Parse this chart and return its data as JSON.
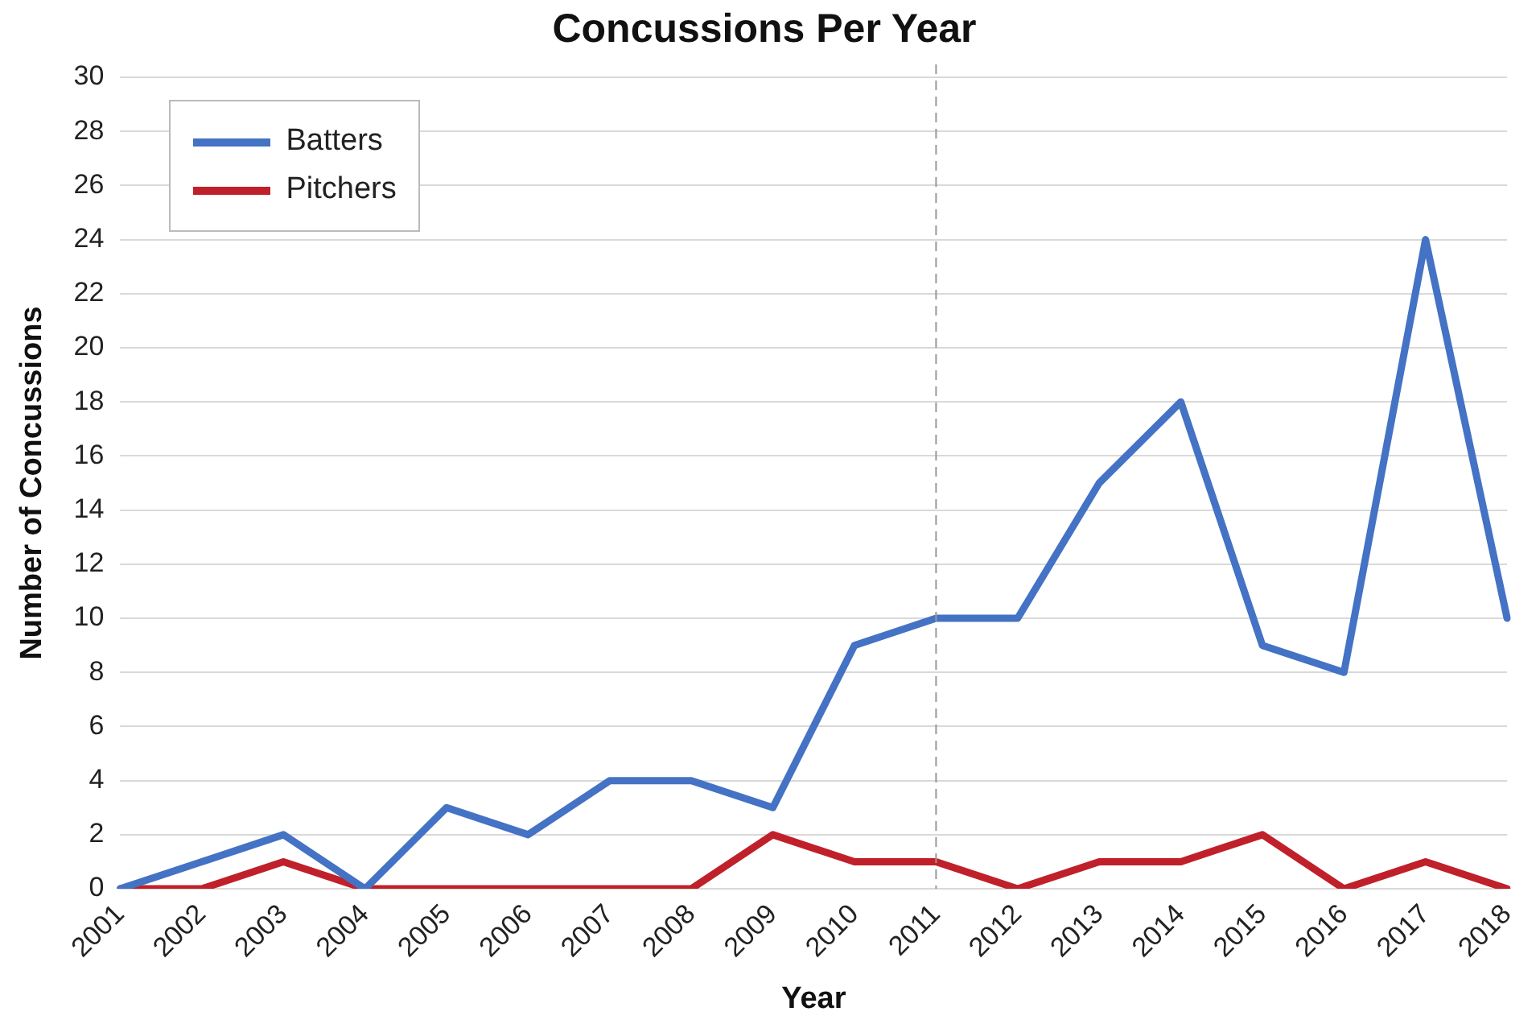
{
  "chart_data": {
    "type": "line",
    "title": "Concussions Per Year",
    "xlabel": "Year",
    "ylabel": "Number of Concussions",
    "categories": [
      "2001",
      "2002",
      "2003",
      "2004",
      "2005",
      "2006",
      "2007",
      "2008",
      "2009",
      "2010",
      "2011",
      "2012",
      "2013",
      "2014",
      "2015",
      "2016",
      "2017",
      "2018"
    ],
    "series": [
      {
        "name": "Batters",
        "color": "#4472c4",
        "values": [
          0,
          1,
          2,
          0,
          3,
          2,
          4,
          4,
          3,
          9,
          10,
          10,
          15,
          18,
          9,
          8,
          24,
          10
        ]
      },
      {
        "name": "Pitchers",
        "color": "#c0202a",
        "values": [
          0,
          0,
          1,
          0,
          0,
          0,
          0,
          0,
          2,
          1,
          1,
          0,
          1,
          1,
          2,
          0,
          1,
          0
        ]
      }
    ],
    "ylim": [
      0,
      30
    ],
    "yticks": [
      0,
      2,
      4,
      6,
      8,
      10,
      12,
      14,
      16,
      18,
      20,
      22,
      24,
      26,
      28,
      30
    ],
    "grid": "y",
    "legend": "top left",
    "marker": "none",
    "line_style": "solid",
    "ref_lines": [
      {
        "axis": "x",
        "value": "2011",
        "color": "#999999",
        "line_style": "dashed"
      }
    ]
  }
}
